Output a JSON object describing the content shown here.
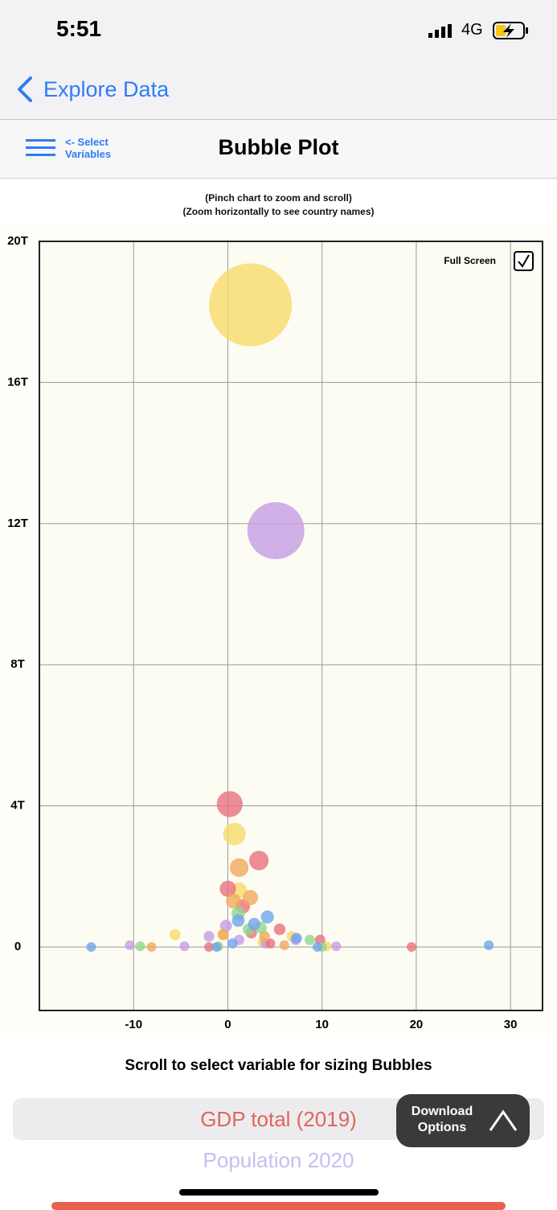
{
  "status_bar": {
    "time": "5:51",
    "network": "4G"
  },
  "nav": {
    "back": "Explore Data"
  },
  "header": {
    "menu": "<- Select Variables",
    "title": "Bubble Plot"
  },
  "hints": [
    "(Pinch chart to zoom and scroll)",
    "(Zoom horizontally to see country names)"
  ],
  "full_screen": "Full Screen",
  "chart_data": {
    "type": "bubble",
    "xlim": [
      -20,
      33.4
    ],
    "ylim": [
      -1.8,
      20
    ],
    "grid": true,
    "xticks": [
      -10,
      0,
      10,
      20,
      30
    ],
    "yticks": [
      0,
      {
        "value": 4,
        "label": "4T"
      },
      {
        "value": 8,
        "label": "8T"
      },
      {
        "value": 12,
        "label": "12T"
      },
      {
        "value": 16,
        "label": "16T"
      },
      {
        "value": 20,
        "label": "20T"
      }
    ],
    "series": [
      {
        "color": "#f7d96a",
        "x": [
          2.4,
          0.7,
          1.2,
          -5.6,
          6.8,
          3.7,
          10.5,
          -0.5
        ],
        "values": [
          18.2,
          3.2,
          1.6,
          0.35,
          0.3,
          0.15,
          0.02,
          0.35
        ],
        "sizes": [
          18.2,
          3.2,
          1.6,
          0.35,
          0.3,
          0.15,
          0.02,
          0.35
        ]
      },
      {
        "color": "#c59ce3",
        "x": [
          5.1,
          -4.6,
          -10.4,
          -2.0,
          -0.2,
          11.5,
          4.0,
          7.2,
          1.2
        ],
        "values": [
          11.8,
          0.02,
          0.05,
          0.3,
          0.6,
          0.02,
          0.1,
          0.2,
          0.2
        ],
        "sizes": [
          11.8,
          0.02,
          0.05,
          0.3,
          0.6,
          0.02,
          0.1,
          0.2,
          0.2
        ]
      },
      {
        "color": "#e8707e",
        "x": [
          0.2,
          3.3,
          0.0,
          1.6,
          5.5,
          19.5,
          9.8,
          2.5,
          -2.0,
          4.5
        ],
        "values": [
          4.05,
          2.45,
          1.65,
          1.15,
          0.5,
          0.0,
          0.2,
          0.4,
          0.0,
          0.1
        ],
        "sizes": [
          4.05,
          2.45,
          1.65,
          1.15,
          0.5,
          0.0,
          0.2,
          0.4,
          0.0,
          0.1
        ]
      },
      {
        "color": "#f0a95a",
        "x": [
          1.2,
          2.4,
          -8.1,
          0.6,
          3.9,
          -0.5,
          6.0
        ],
        "values": [
          2.25,
          1.4,
          0.0,
          1.3,
          0.3,
          0.35,
          0.05
        ],
        "sizes": [
          2.25,
          1.4,
          0.0,
          1.3,
          0.3,
          0.35,
          0.05
        ]
      },
      {
        "color": "#8fd88f",
        "x": [
          1.1,
          3.5,
          -9.3,
          8.7,
          2.2,
          -1.0,
          10.0
        ],
        "values": [
          0.95,
          0.55,
          0.02,
          0.2,
          0.5,
          0.02,
          0.0
        ],
        "sizes": [
          0.95,
          0.55,
          0.02,
          0.2,
          0.5,
          0.02,
          0.0
        ]
      },
      {
        "color": "#6fa4ec",
        "x": [
          -14.5,
          27.7,
          4.2,
          1.1,
          2.8,
          7.3,
          0.5,
          9.5,
          -1.2
        ],
        "values": [
          0.0,
          0.05,
          0.85,
          0.75,
          0.65,
          0.25,
          0.1,
          0.0,
          0.0
        ],
        "sizes": [
          0.0,
          0.05,
          0.85,
          0.75,
          0.65,
          0.25,
          0.1,
          0.0,
          0.0
        ]
      }
    ]
  },
  "picker": {
    "prompt": "Scroll to select variable for sizing Bubbles",
    "options": [
      "GDP total (2019)",
      "Population 2020"
    ]
  },
  "download": "Download Options"
}
